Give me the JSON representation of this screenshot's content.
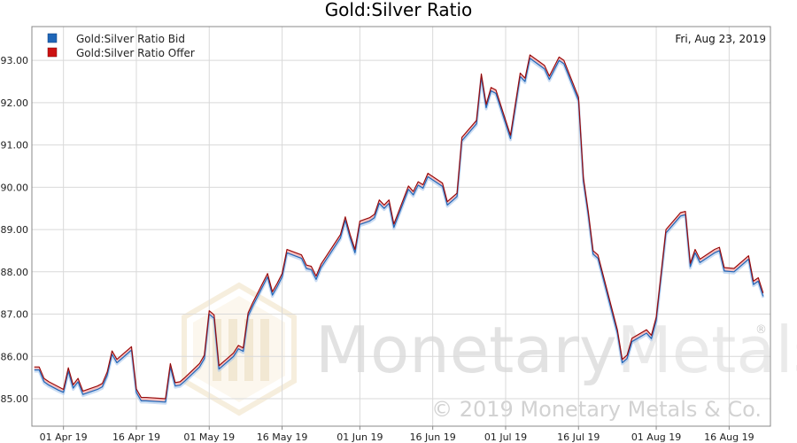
{
  "chart_data": {
    "type": "line",
    "title": "Gold:Silver Ratio",
    "date_label": "Fri, Aug 23, 2019",
    "xlabel": "",
    "ylabel": "",
    "ylim": [
      84.35,
      93.8
    ],
    "y_ticks": [
      "85.00",
      "86.00",
      "87.00",
      "88.00",
      "89.00",
      "90.00",
      "91.00",
      "92.00",
      "93.00"
    ],
    "x_tick_labels": [
      "01 Apr 19",
      "16 Apr 19",
      "01 May 19",
      "16 May 19",
      "01 Jun 19",
      "16 Jun 19",
      "01 Jul 19",
      "16 Jul 19",
      "01 Aug 19",
      "16 Aug 19"
    ],
    "x_range": [
      "2019-03-26",
      "2019-08-23"
    ],
    "grid": true,
    "legend": "top-left",
    "series": [
      {
        "name": "Gold:Silver Ratio Bid",
        "color": "#1f66b8",
        "values": [
          [
            "2019-03-26",
            85.68
          ],
          [
            "2019-03-27",
            85.68
          ],
          [
            "2019-03-28",
            85.4
          ],
          [
            "2019-03-29",
            85.32
          ],
          [
            "2019-03-31",
            85.2
          ],
          [
            "2019-04-01",
            85.15
          ],
          [
            "2019-04-02",
            85.65
          ],
          [
            "2019-04-03",
            85.25
          ],
          [
            "2019-04-04",
            85.4
          ],
          [
            "2019-04-05",
            85.1
          ],
          [
            "2019-04-08",
            85.22
          ],
          [
            "2019-04-09",
            85.28
          ],
          [
            "2019-04-10",
            85.55
          ],
          [
            "2019-04-11",
            86.05
          ],
          [
            "2019-04-12",
            85.85
          ],
          [
            "2019-04-14",
            86.05
          ],
          [
            "2019-04-15",
            86.15
          ],
          [
            "2019-04-16",
            85.15
          ],
          [
            "2019-04-17",
            84.95
          ],
          [
            "2019-04-18",
            84.95
          ],
          [
            "2019-04-22",
            84.92
          ],
          [
            "2019-04-23",
            85.75
          ],
          [
            "2019-04-24",
            85.3
          ],
          [
            "2019-04-25",
            85.32
          ],
          [
            "2019-04-26",
            85.42
          ],
          [
            "2019-04-29",
            85.75
          ],
          [
            "2019-04-30",
            85.95
          ],
          [
            "2019-05-01",
            87.0
          ],
          [
            "2019-05-02",
            86.9
          ],
          [
            "2019-05-03",
            85.7
          ],
          [
            "2019-05-06",
            86.0
          ],
          [
            "2019-05-07",
            86.18
          ],
          [
            "2019-05-08",
            86.12
          ],
          [
            "2019-05-09",
            86.95
          ],
          [
            "2019-05-10",
            87.2
          ],
          [
            "2019-05-13",
            87.88
          ],
          [
            "2019-05-14",
            87.45
          ],
          [
            "2019-05-15",
            87.65
          ],
          [
            "2019-05-16",
            87.88
          ],
          [
            "2019-05-17",
            88.45
          ],
          [
            "2019-05-20",
            88.32
          ],
          [
            "2019-05-21",
            88.08
          ],
          [
            "2019-05-22",
            88.05
          ],
          [
            "2019-05-23",
            87.82
          ],
          [
            "2019-05-24",
            88.1
          ],
          [
            "2019-05-28",
            88.8
          ],
          [
            "2019-05-29",
            89.22
          ],
          [
            "2019-05-30",
            88.8
          ],
          [
            "2019-05-31",
            88.45
          ],
          [
            "2019-06-01",
            89.12
          ],
          [
            "2019-06-03",
            89.2
          ],
          [
            "2019-06-04",
            89.28
          ],
          [
            "2019-06-05",
            89.62
          ],
          [
            "2019-06-06",
            89.5
          ],
          [
            "2019-06-07",
            89.62
          ],
          [
            "2019-06-08",
            89.05
          ],
          [
            "2019-06-11",
            89.95
          ],
          [
            "2019-06-12",
            89.82
          ],
          [
            "2019-06-13",
            90.05
          ],
          [
            "2019-06-14",
            89.98
          ],
          [
            "2019-06-15",
            90.25
          ],
          [
            "2019-06-18",
            90.02
          ],
          [
            "2019-06-19",
            89.58
          ],
          [
            "2019-06-21",
            89.78
          ],
          [
            "2019-06-22",
            91.1
          ],
          [
            "2019-06-25",
            91.5
          ],
          [
            "2019-06-26",
            92.6
          ],
          [
            "2019-06-27",
            91.88
          ],
          [
            "2019-06-28",
            92.28
          ],
          [
            "2019-06-29",
            92.22
          ],
          [
            "2019-07-02",
            91.15
          ],
          [
            "2019-07-04",
            92.62
          ],
          [
            "2019-07-05",
            92.5
          ],
          [
            "2019-07-06",
            93.05
          ],
          [
            "2019-07-09",
            92.8
          ],
          [
            "2019-07-10",
            92.55
          ],
          [
            "2019-07-12",
            93.0
          ],
          [
            "2019-07-13",
            92.92
          ],
          [
            "2019-07-16",
            92.05
          ],
          [
            "2019-07-17",
            90.15
          ],
          [
            "2019-07-18",
            89.35
          ],
          [
            "2019-07-19",
            88.42
          ],
          [
            "2019-07-20",
            88.32
          ],
          [
            "2019-07-24",
            86.55
          ],
          [
            "2019-07-25",
            85.85
          ],
          [
            "2019-07-26",
            85.95
          ],
          [
            "2019-07-27",
            86.35
          ],
          [
            "2019-07-30",
            86.55
          ],
          [
            "2019-07-31",
            86.42
          ],
          [
            "2019-08-01",
            86.85
          ],
          [
            "2019-08-03",
            88.92
          ],
          [
            "2019-08-06",
            89.32
          ],
          [
            "2019-08-07",
            89.35
          ],
          [
            "2019-08-08",
            88.12
          ],
          [
            "2019-08-09",
            88.45
          ],
          [
            "2019-08-10",
            88.22
          ],
          [
            "2019-08-13",
            88.45
          ],
          [
            "2019-08-14",
            88.5
          ],
          [
            "2019-08-15",
            88.02
          ],
          [
            "2019-08-17",
            88.0
          ],
          [
            "2019-08-20",
            88.3
          ],
          [
            "2019-08-21",
            87.7
          ],
          [
            "2019-08-22",
            87.78
          ],
          [
            "2019-08-23",
            87.42
          ]
        ]
      },
      {
        "name": "Gold:Silver Ratio Offer",
        "color": "#cc1111",
        "values": [
          [
            "2019-03-26",
            85.75
          ],
          [
            "2019-03-27",
            85.75
          ],
          [
            "2019-03-28",
            85.48
          ],
          [
            "2019-03-29",
            85.4
          ],
          [
            "2019-03-31",
            85.28
          ],
          [
            "2019-04-01",
            85.22
          ],
          [
            "2019-04-02",
            85.73
          ],
          [
            "2019-04-03",
            85.33
          ],
          [
            "2019-04-04",
            85.48
          ],
          [
            "2019-04-05",
            85.18
          ],
          [
            "2019-04-08",
            85.3
          ],
          [
            "2019-04-09",
            85.36
          ],
          [
            "2019-04-10",
            85.63
          ],
          [
            "2019-04-11",
            86.13
          ],
          [
            "2019-04-12",
            85.93
          ],
          [
            "2019-04-14",
            86.13
          ],
          [
            "2019-04-15",
            86.23
          ],
          [
            "2019-04-16",
            85.23
          ],
          [
            "2019-04-17",
            85.03
          ],
          [
            "2019-04-18",
            85.03
          ],
          [
            "2019-04-22",
            85.0
          ],
          [
            "2019-04-23",
            85.83
          ],
          [
            "2019-04-24",
            85.38
          ],
          [
            "2019-04-25",
            85.4
          ],
          [
            "2019-04-26",
            85.5
          ],
          [
            "2019-04-29",
            85.83
          ],
          [
            "2019-04-30",
            86.03
          ],
          [
            "2019-05-01",
            87.08
          ],
          [
            "2019-05-02",
            86.98
          ],
          [
            "2019-05-03",
            85.78
          ],
          [
            "2019-05-06",
            86.08
          ],
          [
            "2019-05-07",
            86.26
          ],
          [
            "2019-05-08",
            86.2
          ],
          [
            "2019-05-09",
            87.03
          ],
          [
            "2019-05-10",
            87.28
          ],
          [
            "2019-05-13",
            87.96
          ],
          [
            "2019-05-14",
            87.53
          ],
          [
            "2019-05-15",
            87.73
          ],
          [
            "2019-05-16",
            87.96
          ],
          [
            "2019-05-17",
            88.53
          ],
          [
            "2019-05-20",
            88.4
          ],
          [
            "2019-05-21",
            88.16
          ],
          [
            "2019-05-22",
            88.13
          ],
          [
            "2019-05-23",
            87.9
          ],
          [
            "2019-05-24",
            88.18
          ],
          [
            "2019-05-28",
            88.88
          ],
          [
            "2019-05-29",
            89.3
          ],
          [
            "2019-05-30",
            88.88
          ],
          [
            "2019-05-31",
            88.53
          ],
          [
            "2019-06-01",
            89.2
          ],
          [
            "2019-06-03",
            89.28
          ],
          [
            "2019-06-04",
            89.36
          ],
          [
            "2019-06-05",
            89.7
          ],
          [
            "2019-06-06",
            89.58
          ],
          [
            "2019-06-07",
            89.7
          ],
          [
            "2019-06-08",
            89.13
          ],
          [
            "2019-06-11",
            90.03
          ],
          [
            "2019-06-12",
            89.9
          ],
          [
            "2019-06-13",
            90.13
          ],
          [
            "2019-06-14",
            90.06
          ],
          [
            "2019-06-15",
            90.33
          ],
          [
            "2019-06-18",
            90.1
          ],
          [
            "2019-06-19",
            89.66
          ],
          [
            "2019-06-21",
            89.86
          ],
          [
            "2019-06-22",
            91.18
          ],
          [
            "2019-06-25",
            91.58
          ],
          [
            "2019-06-26",
            92.68
          ],
          [
            "2019-06-27",
            91.96
          ],
          [
            "2019-06-28",
            92.36
          ],
          [
            "2019-06-29",
            92.3
          ],
          [
            "2019-07-02",
            91.23
          ],
          [
            "2019-07-04",
            92.7
          ],
          [
            "2019-07-05",
            92.58
          ],
          [
            "2019-07-06",
            93.13
          ],
          [
            "2019-07-09",
            92.88
          ],
          [
            "2019-07-10",
            92.63
          ],
          [
            "2019-07-12",
            93.08
          ],
          [
            "2019-07-13",
            93.0
          ],
          [
            "2019-07-16",
            92.13
          ],
          [
            "2019-07-17",
            90.23
          ],
          [
            "2019-07-18",
            89.43
          ],
          [
            "2019-07-19",
            88.5
          ],
          [
            "2019-07-20",
            88.4
          ],
          [
            "2019-07-24",
            86.63
          ],
          [
            "2019-07-25",
            85.93
          ],
          [
            "2019-07-26",
            86.03
          ],
          [
            "2019-07-27",
            86.43
          ],
          [
            "2019-07-30",
            86.63
          ],
          [
            "2019-07-31",
            86.5
          ],
          [
            "2019-08-01",
            86.93
          ],
          [
            "2019-08-03",
            89.0
          ],
          [
            "2019-08-06",
            89.4
          ],
          [
            "2019-08-07",
            89.43
          ],
          [
            "2019-08-08",
            88.2
          ],
          [
            "2019-08-09",
            88.53
          ],
          [
            "2019-08-10",
            88.3
          ],
          [
            "2019-08-13",
            88.53
          ],
          [
            "2019-08-14",
            88.58
          ],
          [
            "2019-08-15",
            88.1
          ],
          [
            "2019-08-17",
            88.08
          ],
          [
            "2019-08-20",
            88.38
          ],
          [
            "2019-08-21",
            87.78
          ],
          [
            "2019-08-22",
            87.86
          ],
          [
            "2019-08-23",
            87.5
          ]
        ]
      }
    ]
  },
  "watermark": {
    "brand": "MonetaryMetals",
    "brand_part1": "Monetary",
    "brand_part2": "Metals",
    "registered": "®",
    "copyright": "© 2019 Monetary Metals & Co.",
    "logo_color": "#e8c98a",
    "text_color": "#cfcfcf"
  }
}
